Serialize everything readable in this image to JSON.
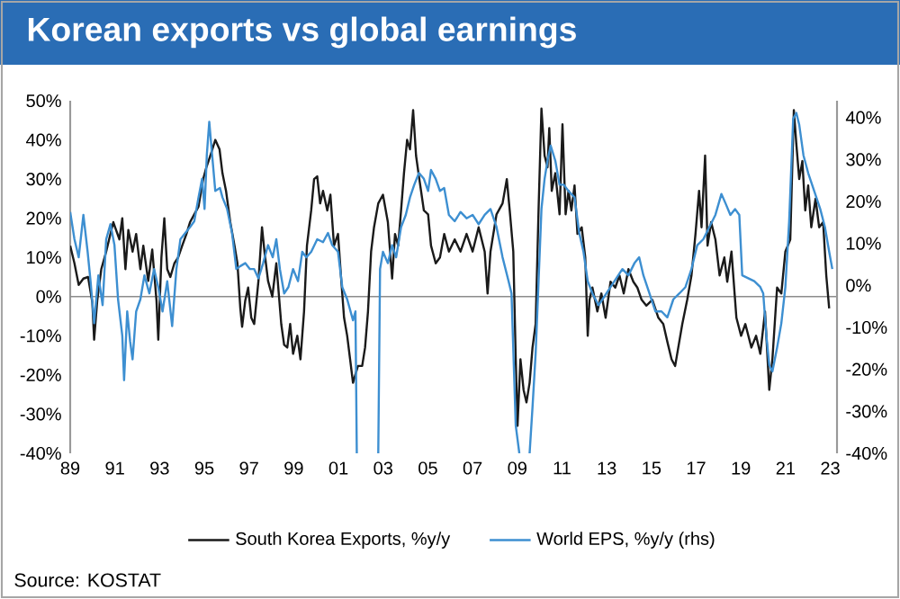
{
  "chart_data": {
    "type": "line",
    "title": "Korean exports vs global earnings",
    "annotations": [
      "Source: KOSTAT"
    ],
    "legend": "bottom",
    "marker": "none",
    "line_style": "solid",
    "grid": false,
    "xlim": [
      1989,
      2023.3
    ],
    "xticks": [
      {
        "value": 1989,
        "label": "89"
      },
      {
        "value": 1991,
        "label": "91"
      },
      {
        "value": 1993,
        "label": "93"
      },
      {
        "value": 1995,
        "label": "95"
      },
      {
        "value": 1997,
        "label": "97"
      },
      {
        "value": 1999,
        "label": "99"
      },
      {
        "value": 2001,
        "label": "01"
      },
      {
        "value": 2003,
        "label": "03"
      },
      {
        "value": 2005,
        "label": "05"
      },
      {
        "value": 2007,
        "label": "07"
      },
      {
        "value": 2009,
        "label": "09"
      },
      {
        "value": 2011,
        "label": "11"
      },
      {
        "value": 2013,
        "label": "13"
      },
      {
        "value": 2015,
        "label": "15"
      },
      {
        "value": 2017,
        "label": "17"
      },
      {
        "value": 2019,
        "label": "19"
      },
      {
        "value": 2021,
        "label": "21"
      },
      {
        "value": 2023,
        "label": "23"
      }
    ],
    "ylim": [
      -40,
      50
    ],
    "yticks": [
      {
        "value": -40,
        "label": "-40%"
      },
      {
        "value": -30,
        "label": "-30%"
      },
      {
        "value": -20,
        "label": "-20%"
      },
      {
        "value": -10,
        "label": "-10%"
      },
      {
        "value": 0,
        "label": "0%"
      },
      {
        "value": 10,
        "label": "10%"
      },
      {
        "value": 20,
        "label": "20%"
      },
      {
        "value": 30,
        "label": "30%"
      },
      {
        "value": 40,
        "label": "40%"
      },
      {
        "value": 50,
        "label": "50%"
      }
    ],
    "y2lim": [
      -40,
      44
    ],
    "y2ticks": [
      {
        "value": -40,
        "label": "-40%"
      },
      {
        "value": -30,
        "label": "-30%"
      },
      {
        "value": -20,
        "label": "-20%"
      },
      {
        "value": -10,
        "label": "-10%"
      },
      {
        "value": 0,
        "label": "0%"
      },
      {
        "value": 10,
        "label": "10%"
      },
      {
        "value": 20,
        "label": "20%"
      },
      {
        "value": 30,
        "label": "30%"
      },
      {
        "value": 40,
        "label": "40%"
      }
    ],
    "ref_lines": [
      {
        "axis": "y",
        "value": 0,
        "color": "#8c8c8c"
      }
    ],
    "series": [
      {
        "name": "South Korea Exports, %y/y",
        "color": "#1a1a1a",
        "axis": "y",
        "x": [
          1989.0,
          1989.19,
          1989.38,
          1989.59,
          1989.8,
          1989.99,
          1990.07,
          1990.21,
          1990.39,
          1990.61,
          1990.8,
          1990.93,
          1991.2,
          1991.33,
          1991.47,
          1991.6,
          1991.79,
          1991.95,
          1992.14,
          1992.27,
          1992.49,
          1992.67,
          1992.86,
          1992.94,
          1993.08,
          1993.21,
          1993.34,
          1993.48,
          1993.66,
          1993.83,
          1994.01,
          1994.2,
          1994.36,
          1994.55,
          1994.74,
          1994.95,
          1995.09,
          1995.27,
          1995.49,
          1995.68,
          1995.81,
          1995.97,
          1996.16,
          1996.35,
          1996.48,
          1996.61,
          1996.69,
          1996.83,
          1996.96,
          1997.1,
          1997.23,
          1997.42,
          1997.58,
          1997.69,
          1997.85,
          1998.04,
          1998.22,
          1998.44,
          1998.57,
          1998.71,
          1998.84,
          1998.97,
          1999.16,
          1999.3,
          1999.46,
          1999.59,
          1999.78,
          1999.91,
          2000.05,
          2000.18,
          2000.31,
          2000.5,
          2000.64,
          2000.8,
          2000.98,
          2001.12,
          2001.25,
          2001.39,
          2001.52,
          2001.65,
          2001.87,
          2002.06,
          2002.19,
          2002.32,
          2002.46,
          2002.59,
          2002.78,
          2002.99,
          2003.21,
          2003.4,
          2003.53,
          2003.67,
          2003.8,
          2003.93,
          2004.07,
          2004.2,
          2004.34,
          2004.47,
          2004.6,
          2004.82,
          2005.01,
          2005.14,
          2005.35,
          2005.54,
          2005.73,
          2005.94,
          2006.2,
          2006.46,
          2006.73,
          2007.0,
          2007.27,
          2007.54,
          2007.67,
          2007.8,
          2008.07,
          2008.34,
          2008.53,
          2008.66,
          2008.82,
          2008.93,
          2009.01,
          2009.14,
          2009.28,
          2009.41,
          2009.55,
          2009.68,
          2009.82,
          2009.95,
          2010.08,
          2010.22,
          2010.35,
          2010.43,
          2010.54,
          2010.7,
          2010.89,
          2011.02,
          2011.16,
          2011.29,
          2011.42,
          2011.56,
          2011.69,
          2011.88,
          2012.04,
          2012.15,
          2012.23,
          2012.36,
          2012.58,
          2012.76,
          2012.95,
          2013.17,
          2013.38,
          2013.57,
          2013.76,
          2013.97,
          2014.19,
          2014.37,
          2014.56,
          2014.77,
          2015.04,
          2015.31,
          2015.53,
          2015.71,
          2015.9,
          2016.06,
          2016.2,
          2016.38,
          2016.6,
          2016.79,
          2016.97,
          2017.13,
          2017.24,
          2017.4,
          2017.51,
          2017.67,
          2017.86,
          2018.05,
          2018.26,
          2018.39,
          2018.58,
          2018.8,
          2019.01,
          2019.2,
          2019.47,
          2019.68,
          2019.87,
          2020.08,
          2020.27,
          2020.41,
          2020.62,
          2020.81,
          2020.99,
          2021.21,
          2021.37,
          2021.48,
          2021.61,
          2021.75,
          2021.88,
          2022.01,
          2022.15,
          2022.34,
          2022.5,
          2022.68,
          2022.82,
          2022.95
        ],
        "values": [
          13,
          8.5,
          3,
          4.6,
          5,
          -1.5,
          -11,
          -1,
          7,
          11.5,
          16,
          19,
          14.6,
          20,
          7,
          17,
          11.5,
          16,
          7,
          13,
          4,
          12,
          -1,
          -11,
          10,
          20,
          7,
          5,
          8.5,
          10,
          13,
          16,
          19,
          21,
          23,
          30,
          33,
          36,
          40,
          37.6,
          31.5,
          27,
          19,
          13,
          8.5,
          -3,
          -7.7,
          -1,
          2.3,
          -5.4,
          -7,
          4,
          17.7,
          11.5,
          4,
          0,
          8.5,
          -7,
          -12.3,
          -13,
          -7,
          -14.6,
          -10,
          -16,
          -3.8,
          13,
          22,
          30,
          30.7,
          23.8,
          27,
          22,
          26,
          13,
          16,
          4.6,
          -5.4,
          -10,
          -16,
          -22,
          -17.7,
          -17.7,
          -13,
          -3.8,
          11.5,
          17.7,
          23.8,
          26,
          19,
          4.6,
          16,
          13,
          22,
          31.5,
          40,
          37.6,
          47.6,
          36,
          30.7,
          22,
          21,
          13,
          8.5,
          10,
          16,
          11.5,
          14.6,
          11.5,
          16,
          11.5,
          17.7,
          11.5,
          0.8,
          11.5,
          21,
          23.8,
          30,
          22,
          11.5,
          -16,
          -33,
          -16,
          -23.8,
          -27,
          -22,
          -13,
          -7,
          22,
          48,
          36,
          33,
          43,
          27,
          31.5,
          21,
          44,
          21,
          27,
          22,
          28.4,
          16,
          17.7,
          10,
          -10,
          -0.8,
          2.3,
          -3.8,
          0.8,
          -5.4,
          3.8,
          2.3,
          5.4,
          0.8,
          7,
          3.8,
          2.3,
          -0.8,
          -2.3,
          -0.8,
          -5.4,
          -7,
          -11.5,
          -16,
          -17.7,
          -13,
          -7,
          -0.8,
          5.4,
          16,
          27,
          17.7,
          36,
          13,
          19,
          14.6,
          5.4,
          10,
          3.8,
          11.5,
          -5.4,
          -10,
          -7,
          -13,
          -10,
          -14.6,
          -3.8,
          -23.8,
          -16,
          2.3,
          0.8,
          11.5,
          14.6,
          47.6,
          39,
          30,
          34.6,
          22,
          28.4,
          17.7,
          25,
          17.7,
          19,
          5.4,
          -3
        ]
      },
      {
        "name": "World EPS, %y/y (rhs)",
        "color": "#3d8fd1",
        "axis": "y2",
        "x": [
          1989.0,
          1989.19,
          1989.38,
          1989.59,
          1989.78,
          1989.91,
          1990.07,
          1990.26,
          1990.45,
          1990.61,
          1990.8,
          1990.98,
          1991.14,
          1991.33,
          1991.41,
          1991.55,
          1991.68,
          1991.79,
          1991.95,
          1992.14,
          1992.32,
          1992.54,
          1992.75,
          1992.94,
          1993.13,
          1993.34,
          1993.56,
          1993.75,
          1993.93,
          1994.15,
          1994.36,
          1994.55,
          1994.74,
          1994.9,
          1995.01,
          1995.11,
          1995.22,
          1995.35,
          1995.49,
          1995.7,
          1995.81,
          1996.02,
          1996.24,
          1996.43,
          1996.61,
          1996.83,
          1997.04,
          1997.23,
          1997.42,
          1997.63,
          1997.85,
          1998.06,
          1998.22,
          1998.38,
          1998.57,
          1998.76,
          1998.97,
          1999.19,
          1999.38,
          1999.56,
          1999.78,
          2000.05,
          2000.31,
          2000.53,
          2000.72,
          2000.98,
          2001.17,
          2001.39,
          2001.65,
          2001.76,
          2001.82,
          2002.3,
          2002.78,
          2002.86,
          2002.99,
          2003.21,
          2003.4,
          2003.58,
          2003.8,
          2004.01,
          2004.2,
          2004.39,
          2004.6,
          2004.82,
          2005.01,
          2005.14,
          2005.35,
          2005.54,
          2005.73,
          2005.94,
          2006.2,
          2006.46,
          2006.73,
          2007.0,
          2007.27,
          2007.54,
          2007.8,
          2008.07,
          2008.34,
          2008.61,
          2008.74,
          2008.93,
          2009.09,
          2009.3,
          2009.55,
          2009.68,
          2009.82,
          2009.95,
          2010.08,
          2010.22,
          2010.35,
          2010.49,
          2010.7,
          2010.89,
          2011.08,
          2011.29,
          2011.56,
          2011.77,
          2011.96,
          2012.15,
          2012.36,
          2012.63,
          2012.9,
          2013.17,
          2013.43,
          2013.7,
          2013.97,
          2014.24,
          2014.45,
          2014.64,
          2014.91,
          2015.18,
          2015.45,
          2015.71,
          2015.98,
          2016.25,
          2016.52,
          2016.79,
          2017.05,
          2017.32,
          2017.59,
          2017.86,
          2018.13,
          2018.31,
          2018.53,
          2018.74,
          2018.93,
          2019.06,
          2019.33,
          2019.6,
          2019.87,
          2020.0,
          2020.14,
          2020.27,
          2020.41,
          2020.62,
          2020.81,
          2020.99,
          2021.16,
          2021.34,
          2021.48,
          2021.61,
          2021.8,
          2022.01,
          2022.28,
          2022.55,
          2022.76,
          2022.95,
          2023.09
        ],
        "values": [
          17.5,
          11,
          6.7,
          16.8,
          8,
          1,
          -9,
          2.4,
          -4.7,
          11,
          14.6,
          9.6,
          -3.3,
          -12,
          -22.6,
          -6.2,
          -13.3,
          -17.6,
          -6.2,
          -3.3,
          2.4,
          -1.9,
          3.9,
          -0.4,
          -6.2,
          1,
          -9.7,
          3.9,
          11,
          12.5,
          13.9,
          15.3,
          21,
          25.4,
          18.2,
          31,
          39,
          31,
          22.5,
          23.2,
          21,
          18.2,
          12.5,
          3.9,
          4.6,
          5.3,
          3.9,
          3.9,
          1.7,
          5.3,
          9.6,
          6.7,
          11,
          3.9,
          -1.9,
          -0.4,
          3.9,
          1,
          8,
          6.7,
          8,
          11,
          10.3,
          12.5,
          9.6,
          8,
          -0.4,
          -3.3,
          -8.3,
          -6.2,
          -40,
          null,
          -40,
          3.9,
          8,
          5.3,
          9.6,
          6.7,
          13.9,
          16.8,
          21,
          24,
          26.8,
          25.4,
          22.5,
          27.5,
          25.4,
          22.5,
          23.2,
          16.8,
          15.3,
          17.5,
          16,
          16.8,
          14.6,
          16.8,
          18.2,
          13.9,
          6.7,
          1,
          -1.9,
          -33.4,
          -40,
          null,
          -40,
          -29,
          -16.2,
          1,
          18.2,
          25.4,
          29.7,
          33.3,
          29.7,
          24,
          24,
          22.5,
          21,
          12.5,
          8,
          1,
          -1.9,
          -4.7,
          -2.6,
          -0.4,
          1.7,
          3.9,
          2.4,
          5.3,
          6.7,
          2.4,
          -1.9,
          -6.2,
          -6.2,
          -7.6,
          -3.3,
          -1.9,
          -0.4,
          3.9,
          9.6,
          11,
          13.9,
          16.8,
          21.8,
          19.6,
          16.8,
          18.2,
          16.8,
          2.4,
          1.7,
          1,
          -0.4,
          -1.9,
          -11.9,
          -19,
          -20.5,
          -14.8,
          -9,
          -0.4,
          15.3,
          39.7,
          41.1,
          38.3,
          31,
          26.8,
          22.5,
          18.2,
          13.9,
          8,
          3.9
        ]
      }
    ]
  }
}
